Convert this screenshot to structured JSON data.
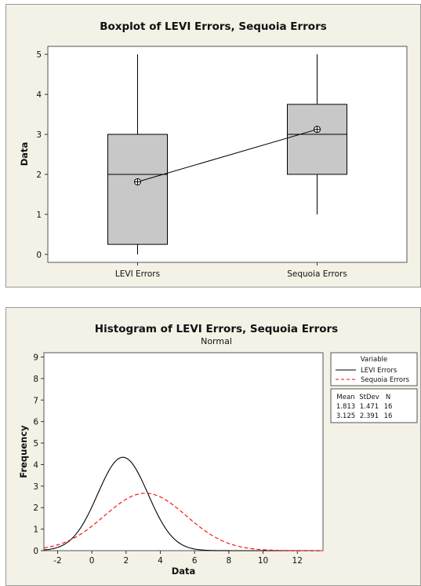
{
  "chart_data": [
    {
      "type": "boxplot",
      "title": "Boxplot of LEVI Errors, Sequoia Errors",
      "xlabel": "",
      "ylabel": "Data",
      "ylim": [
        -0.2,
        5.2
      ],
      "yticks": [
        "0",
        "1",
        "2",
        "3",
        "4",
        "5"
      ],
      "categories": [
        "LEVI Errors",
        "Sequoia Errors"
      ],
      "series": [
        {
          "name": "LEVI Errors",
          "min": 0,
          "q1": 0.25,
          "median": 2,
          "q3": 3,
          "max": 5,
          "mean": 1.813
        },
        {
          "name": "Sequoia Errors",
          "min": 1,
          "q1": 2,
          "median": 3,
          "q3": 3.75,
          "max": 5,
          "mean": 3.125
        }
      ],
      "mean_connect_line": true,
      "box_fill": "#c8c8c8"
    },
    {
      "type": "line",
      "title": "Histogram of LEVI Errors, Sequoia Errors",
      "subtitle": "Normal",
      "xlabel": "Data",
      "ylabel": "Frequency",
      "xlim": [
        -2.8,
        13.5
      ],
      "ylim": [
        0,
        9.2
      ],
      "xticks": [
        "-2",
        "0",
        "2",
        "4",
        "6",
        "8",
        "10",
        "12"
      ],
      "yticks": [
        "0",
        "1",
        "2",
        "3",
        "4",
        "5",
        "6",
        "7",
        "8",
        "9"
      ],
      "scale": 16,
      "series": [
        {
          "name": "LEVI Errors",
          "mean": 1.813,
          "stdev": 1.471,
          "n": 16,
          "color": "#000000",
          "dash": false
        },
        {
          "name": "Sequoia Errors",
          "mean": 3.125,
          "stdev": 2.391,
          "n": 16,
          "color": "#ff0000",
          "dash": true
        }
      ],
      "legend": {
        "title": "Variable",
        "placement": "right",
        "stats_headers": [
          "Mean",
          "StDev",
          "N"
        ],
        "stats_rows": [
          [
            "1.813",
            "1.471",
            "16"
          ],
          [
            "3.125",
            "2.391",
            "16"
          ]
        ]
      }
    }
  ]
}
